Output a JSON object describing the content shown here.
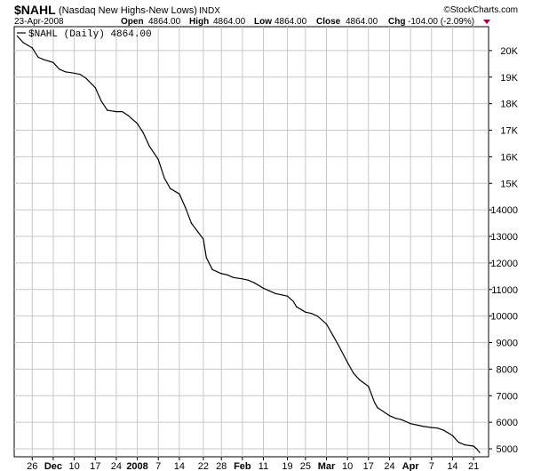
{
  "header": {
    "symbol": "$NAHL",
    "description": "(Nasdaq New Highs-New Lows)",
    "exchange": "INDX",
    "date": "23-Apr-2008",
    "brand": "©StockCharts.com",
    "open_label": "Open",
    "open_value": "4864.00",
    "high_label": "High",
    "high_value": "4864.00",
    "low_label": "Low",
    "low_value": "4864.00",
    "close_label": "Close",
    "close_value": "4864.00",
    "chg_label": "Chg",
    "chg_value": "-104.00 (-2.09%)"
  },
  "legend": {
    "text": "$NAHL (Daily) 4864.00"
  },
  "colors": {
    "line": "#000000",
    "grid": "#c8c8c8",
    "axis": "#000000",
    "chg_arrow": "#aa0033"
  },
  "chart_data": {
    "type": "line",
    "ylim": [
      4700,
      20900
    ],
    "y_ticks": [
      {
        "value": 5000,
        "label": "5000"
      },
      {
        "value": 6000,
        "label": "6000"
      },
      {
        "value": 7000,
        "label": "7000"
      },
      {
        "value": 8000,
        "label": "8000"
      },
      {
        "value": 9000,
        "label": "9000"
      },
      {
        "value": 10000,
        "label": "10000"
      },
      {
        "value": 11000,
        "label": "11000"
      },
      {
        "value": 12000,
        "label": "12000"
      },
      {
        "value": 13000,
        "label": "13000"
      },
      {
        "value": 14000,
        "label": "14000"
      },
      {
        "value": 15000,
        "label": "15K"
      },
      {
        "value": 16000,
        "label": "16K"
      },
      {
        "value": 17000,
        "label": "17K"
      },
      {
        "value": 18000,
        "label": "18K"
      },
      {
        "value": 19000,
        "label": "19K"
      },
      {
        "value": 20000,
        "label": "20K"
      }
    ],
    "x_ticks": [
      {
        "date": "2007-11-26",
        "label": "26",
        "bold": false
      },
      {
        "date": "2007-12-03",
        "label": "Dec",
        "bold": true
      },
      {
        "date": "2007-12-10",
        "label": "10",
        "bold": false
      },
      {
        "date": "2007-12-17",
        "label": "17",
        "bold": false
      },
      {
        "date": "2007-12-24",
        "label": "24",
        "bold": false
      },
      {
        "date": "2007-12-31",
        "label": "2008",
        "bold": true
      },
      {
        "date": "2008-01-07",
        "label": "7",
        "bold": false
      },
      {
        "date": "2008-01-14",
        "label": "14",
        "bold": false
      },
      {
        "date": "2008-01-22",
        "label": "22",
        "bold": false
      },
      {
        "date": "2008-01-28",
        "label": "28",
        "bold": false
      },
      {
        "date": "2008-02-04",
        "label": "Feb",
        "bold": true
      },
      {
        "date": "2008-02-11",
        "label": "11",
        "bold": false
      },
      {
        "date": "2008-02-19",
        "label": "19",
        "bold": false
      },
      {
        "date": "2008-02-25",
        "label": "25",
        "bold": false
      },
      {
        "date": "2008-03-03",
        "label": "Mar",
        "bold": true
      },
      {
        "date": "2008-03-10",
        "label": "10",
        "bold": false
      },
      {
        "date": "2008-03-17",
        "label": "17",
        "bold": false
      },
      {
        "date": "2008-03-24",
        "label": "24",
        "bold": false
      },
      {
        "date": "2008-03-31",
        "label": "Apr",
        "bold": true
      },
      {
        "date": "2008-04-07",
        "label": "7",
        "bold": false
      },
      {
        "date": "2008-04-14",
        "label": "14",
        "bold": false
      },
      {
        "date": "2008-04-21",
        "label": "21",
        "bold": false
      }
    ],
    "series": [
      {
        "points": [
          [
            "2007-11-21",
            20550
          ],
          [
            "2007-11-23",
            20300
          ],
          [
            "2007-11-26",
            20100
          ],
          [
            "2007-11-28",
            19750
          ],
          [
            "2007-11-30",
            19650
          ],
          [
            "2007-12-03",
            19550
          ],
          [
            "2007-12-05",
            19300
          ],
          [
            "2007-12-07",
            19200
          ],
          [
            "2007-12-10",
            19150
          ],
          [
            "2007-12-12",
            19100
          ],
          [
            "2007-12-14",
            18950
          ],
          [
            "2007-12-17",
            18600
          ],
          [
            "2007-12-19",
            18100
          ],
          [
            "2007-12-21",
            17750
          ],
          [
            "2007-12-24",
            17700
          ],
          [
            "2007-12-26",
            17700
          ],
          [
            "2007-12-28",
            17550
          ],
          [
            "2007-12-31",
            17250
          ],
          [
            "2008-01-02",
            16900
          ],
          [
            "2008-01-04",
            16400
          ],
          [
            "2008-01-07",
            15900
          ],
          [
            "2008-01-09",
            15200
          ],
          [
            "2008-01-11",
            14800
          ],
          [
            "2008-01-14",
            14600
          ],
          [
            "2008-01-16",
            14100
          ],
          [
            "2008-01-18",
            13500
          ],
          [
            "2008-01-22",
            12900
          ],
          [
            "2008-01-23",
            12200
          ],
          [
            "2008-01-25",
            11750
          ],
          [
            "2008-01-28",
            11600
          ],
          [
            "2008-01-30",
            11550
          ],
          [
            "2008-02-01",
            11450
          ],
          [
            "2008-02-04",
            11400
          ],
          [
            "2008-02-06",
            11350
          ],
          [
            "2008-02-08",
            11250
          ],
          [
            "2008-02-11",
            11050
          ],
          [
            "2008-02-13",
            10950
          ],
          [
            "2008-02-15",
            10850
          ],
          [
            "2008-02-19",
            10750
          ],
          [
            "2008-02-21",
            10550
          ],
          [
            "2008-02-22",
            10350
          ],
          [
            "2008-02-25",
            10150
          ],
          [
            "2008-02-27",
            10100
          ],
          [
            "2008-02-29",
            10000
          ],
          [
            "2008-03-03",
            9700
          ],
          [
            "2008-03-05",
            9300
          ],
          [
            "2008-03-07",
            8900
          ],
          [
            "2008-03-10",
            8250
          ],
          [
            "2008-03-12",
            7850
          ],
          [
            "2008-03-14",
            7600
          ],
          [
            "2008-03-17",
            7350
          ],
          [
            "2008-03-19",
            6750
          ],
          [
            "2008-03-20",
            6550
          ],
          [
            "2008-03-24",
            6250
          ],
          [
            "2008-03-26",
            6150
          ],
          [
            "2008-03-28",
            6100
          ],
          [
            "2008-03-31",
            5950
          ],
          [
            "2008-04-02",
            5900
          ],
          [
            "2008-04-04",
            5850
          ],
          [
            "2008-04-07",
            5800
          ],
          [
            "2008-04-09",
            5780
          ],
          [
            "2008-04-11",
            5700
          ],
          [
            "2008-04-14",
            5500
          ],
          [
            "2008-04-16",
            5250
          ],
          [
            "2008-04-18",
            5150
          ],
          [
            "2008-04-21",
            5100
          ],
          [
            "2008-04-22",
            5000
          ],
          [
            "2008-04-23",
            4864
          ]
        ]
      }
    ]
  }
}
